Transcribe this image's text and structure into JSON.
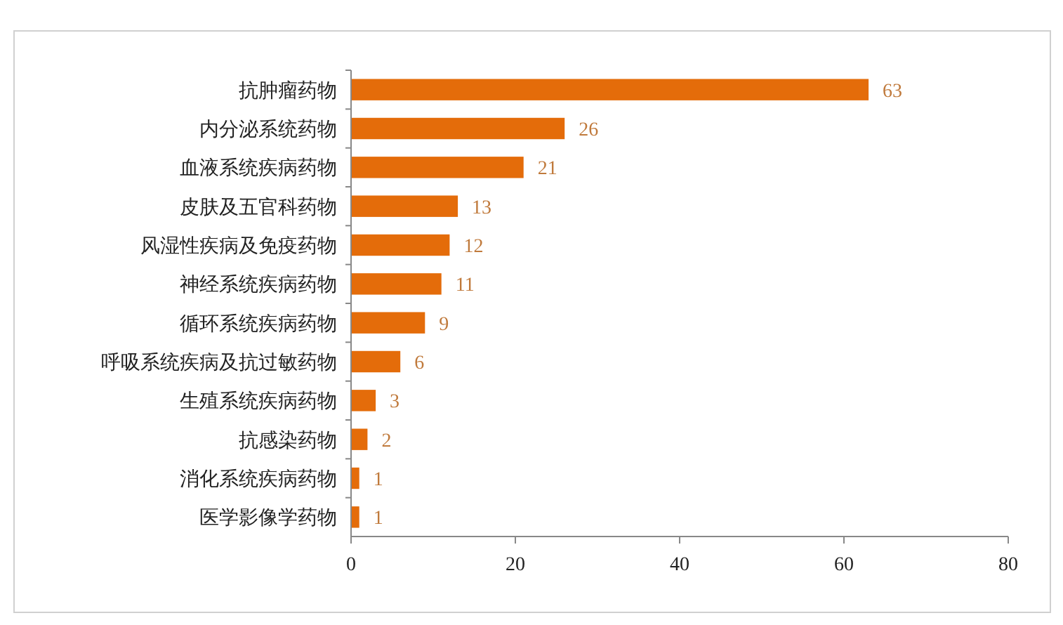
{
  "chart_data": {
    "type": "bar",
    "orientation": "horizontal",
    "categories": [
      "抗肿瘤药物",
      "内分泌系统药物",
      "血液系统疾病药物",
      "皮肤及五官科药物",
      "风湿性疾病及免疫药物",
      "神经系统疾病药物",
      "循环系统疾病药物",
      "呼吸系统疾病及抗过敏药物",
      "生殖系统疾病药物",
      "抗感染药物",
      "消化系统疾病药物",
      "医学影像学药物"
    ],
    "values": [
      63,
      26,
      21,
      13,
      12,
      11,
      9,
      6,
      3,
      2,
      1,
      1
    ],
    "color": "#e46c0a",
    "xlim": [
      0,
      80
    ],
    "xticks": [
      0,
      20,
      40,
      60,
      80
    ],
    "grid": false,
    "data_labels": true
  }
}
